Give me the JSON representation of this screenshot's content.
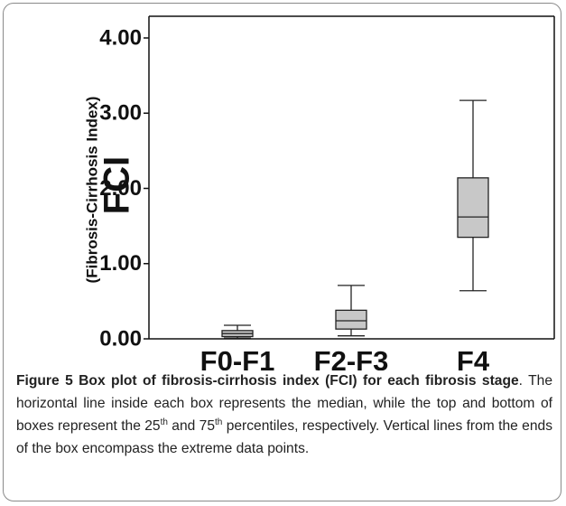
{
  "chart_data": {
    "type": "box",
    "ylabel": "FCI",
    "ylabel_sub": "(Fibrosis-Cirrhosis Index)",
    "categories": [
      "F0-F1",
      "F2-F3",
      "F4"
    ],
    "boxes": [
      {
        "min": 0.01,
        "q1": 0.03,
        "median": 0.07,
        "q3": 0.11,
        "max": 0.18
      },
      {
        "min": 0.04,
        "q1": 0.13,
        "median": 0.24,
        "q3": 0.38,
        "max": 0.71
      },
      {
        "min": 0.64,
        "q1": 1.35,
        "median": 1.62,
        "q3": 2.14,
        "max": 3.17
      }
    ],
    "color": "#c8c8c8",
    "ylim": [
      0,
      4
    ],
    "yticks": [
      {
        "value": 0,
        "label": "0.00"
      },
      {
        "value": 1,
        "label": "1.00"
      },
      {
        "value": 2,
        "label": "2.00"
      },
      {
        "value": 3,
        "label": "3.00"
      },
      {
        "value": 4,
        "label": "4.00"
      }
    ],
    "caption": {
      "label": "Figure 5",
      "title": "Box plot of fibrosis-cirrhosis index (FCI) for each fibrosis stage",
      "text": [
        ". The horizontal line inside each box represents the median, while the top and bottom of boxes represent the 25",
        "th",
        " and 75",
        "th",
        " percentiles, respectively. Vertical lines from the ends of the box encompass the extreme data points."
      ]
    }
  }
}
